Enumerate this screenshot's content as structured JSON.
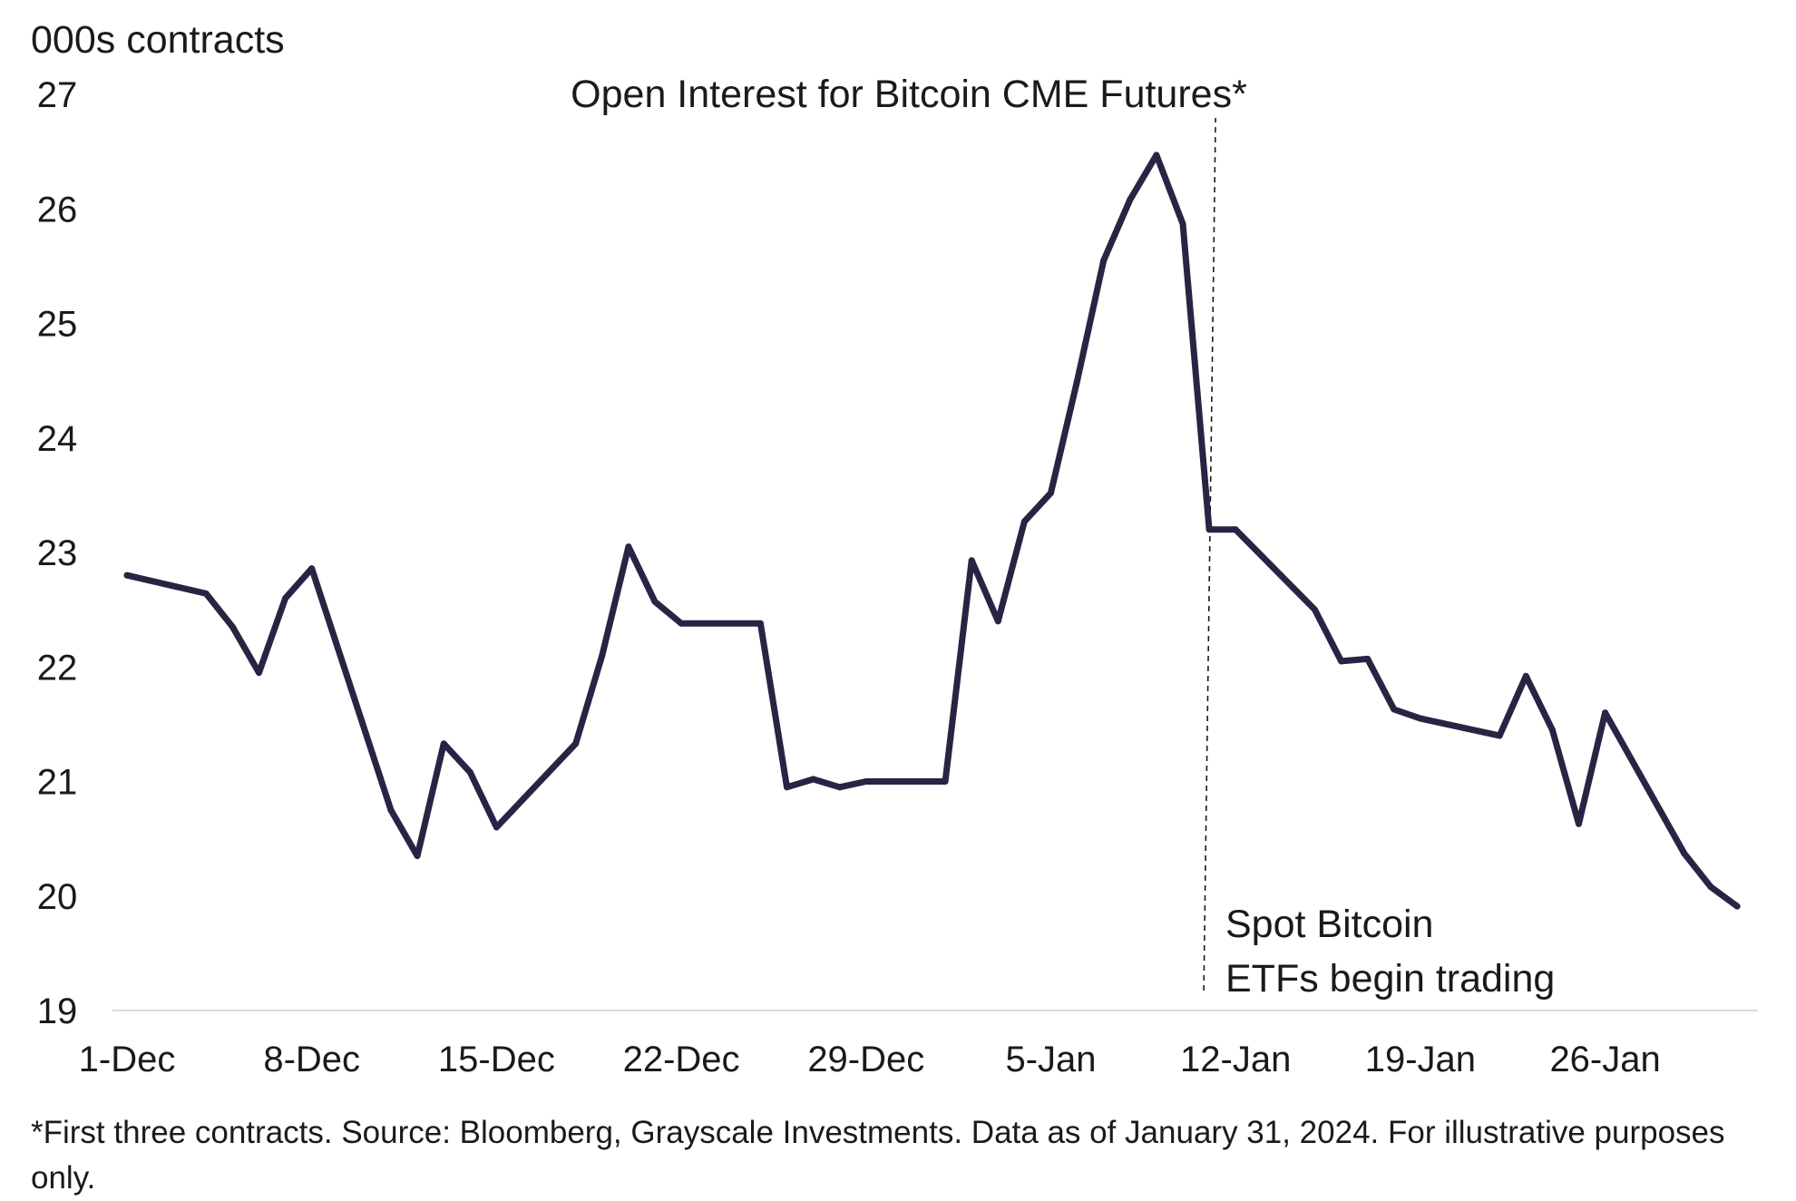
{
  "chart_data": {
    "type": "line",
    "title": "Open Interest for Bitcoin CME Futures*",
    "ylabel": "000s contracts",
    "xlabel": "",
    "ylim": [
      19,
      27
    ],
    "yticks": [
      "19",
      "20",
      "21",
      "22",
      "23",
      "24",
      "25",
      "26",
      "27"
    ],
    "xticks": [
      "1-Dec",
      "8-Dec",
      "15-Dec",
      "22-Dec",
      "29-Dec",
      "5-Jan",
      "12-Jan",
      "19-Jan",
      "26-Jan"
    ],
    "xtick_days": [
      0,
      7,
      14,
      21,
      28,
      35,
      42,
      49,
      56
    ],
    "grid": false,
    "series": [
      {
        "name": "Open Interest",
        "color": "#2a2344",
        "x": [
          0,
          3,
          4,
          5,
          6,
          7,
          10,
          11,
          12,
          13,
          14,
          17,
          18,
          19,
          20,
          21,
          24,
          25,
          26,
          27,
          28,
          31,
          32,
          33,
          34,
          35,
          36,
          37,
          38,
          39,
          40,
          41,
          42,
          45,
          46,
          47,
          48,
          49,
          52,
          53,
          54,
          55,
          56,
          59,
          60,
          61
        ],
        "values": [
          22.8,
          22.64,
          22.35,
          21.95,
          22.6,
          22.86,
          20.75,
          20.35,
          21.33,
          21.08,
          20.6,
          21.33,
          22.1,
          23.05,
          22.57,
          22.38,
          22.38,
          20.95,
          21.02,
          20.95,
          21.0,
          21.0,
          22.93,
          22.4,
          23.27,
          23.52,
          24.5,
          25.55,
          26.08,
          26.47,
          25.87,
          23.2,
          23.2,
          22.5,
          22.05,
          22.07,
          21.63,
          21.55,
          21.4,
          21.92,
          21.45,
          20.63,
          21.6,
          20.37,
          20.08,
          19.91
        ]
      }
    ],
    "annotations": [
      {
        "text_line1": "Spot Bitcoin",
        "text_line2": "ETFs begin trading",
        "x_day": 41
      }
    ]
  },
  "footnote": "*First three contracts. Source: Bloomberg, Grayscale Investments. Data as of January 31, 2024. For illustrative purposes only."
}
